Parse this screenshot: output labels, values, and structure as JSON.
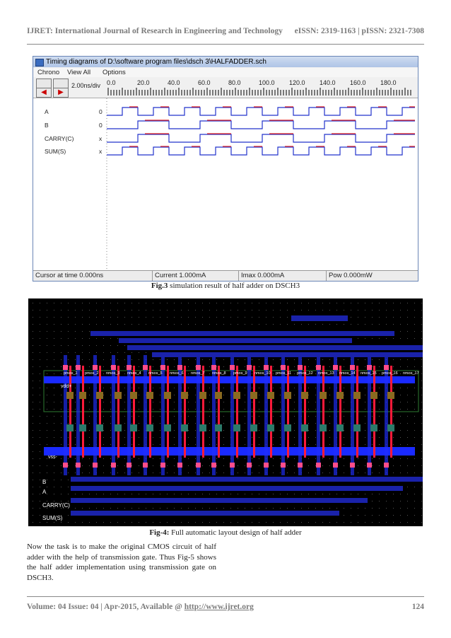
{
  "header": {
    "journal": "IJRET: International Journal of Research in Engineering and Technology",
    "issn": "eISSN: 2319-1163 | pISSN: 2321-7308"
  },
  "timing_window": {
    "title": "Timing diagrams of D:\\software program files\\dsch 3\\HALFADDER.sch",
    "menu": [
      "Chrono",
      "View All",
      "Options"
    ],
    "zoom": "2.00ns/div",
    "ruler_ticks": [
      "0.0",
      "20.0",
      "40.0",
      "60.0",
      "80.0",
      "100.0",
      "120.0",
      "140.0",
      "160.0",
      "180.0"
    ],
    "signals": [
      {
        "name": "A",
        "initial": "0"
      },
      {
        "name": "B",
        "initial": "0"
      },
      {
        "name": "CARRY(C)",
        "initial": "x"
      },
      {
        "name": "SUM(S)",
        "initial": "x"
      }
    ],
    "status": {
      "cursor": "Cursor at time 0.000ns",
      "current": "Current 1.000mA",
      "imax": "Imax 0.000mA",
      "pow": "Pow 0.000mW"
    }
  },
  "fig3": {
    "label": "Fig.3",
    "caption": " simulation result of half adder on DSCH3"
  },
  "layout_fig": {
    "pmos_labels": [
      "pmos_1",
      "pmos_2",
      "nmos_3",
      "nmos_4",
      "nmos_5",
      "nmos_6",
      "nmos_7",
      "nmos_8",
      "pmos_9",
      "nmos_10",
      "pmos_11",
      "pmos_12",
      "nmos_13",
      "nmos_14",
      "nmos_15",
      "pmos_16",
      "nmos_17",
      "pmos_18"
    ],
    "rail_labels": {
      "vdd": "vdd+",
      "vss": "vss-"
    },
    "io_labels": [
      "B",
      "A",
      "CARRY(C)",
      "SUM(S)"
    ]
  },
  "fig4": {
    "label": "Fig-4:",
    "caption": " Full automatic layout design of half adder"
  },
  "paragraph": "Now the task is to make the original CMOS circuit of half adder with the help of transmission gate. Thus Fig-5 shows the half adder implementation using transmission gate on DSCH3.",
  "footer": {
    "volume": "Volume: 04 Issue: 04 | Apr-2015, Available @ ",
    "url": "http://www.ijret.org",
    "page": "124"
  },
  "colors": {
    "wave_blue": "#2233cc",
    "wave_red": "#e02020",
    "metal_blue": "#1a2aff",
    "poly_red": "#ff1a3a"
  }
}
